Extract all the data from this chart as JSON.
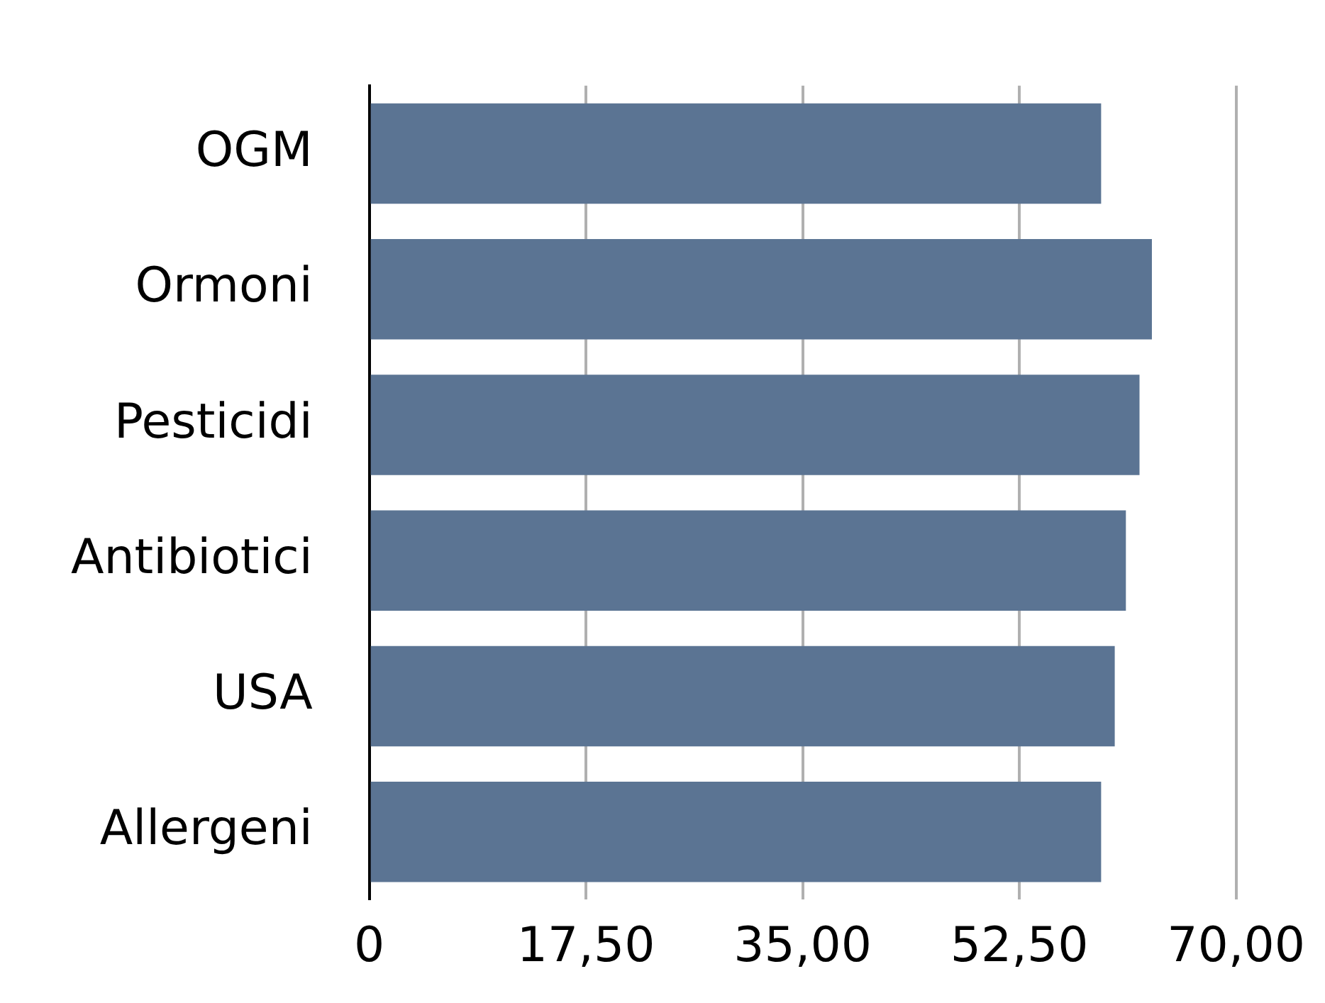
{
  "chart_data": {
    "type": "bar",
    "orientation": "horizontal",
    "categories": [
      "OGM",
      "Ormoni",
      "Pesticidi",
      "Antibiotici",
      "USA",
      "Allergeni"
    ],
    "values": [
      59.1,
      63.2,
      62.2,
      61.1,
      60.2,
      59.1
    ],
    "color": "#5b7493",
    "xlim": [
      0,
      70
    ],
    "xticks": [
      0,
      {
        "value": 17.5,
        "label": "17,50"
      },
      {
        "value": 35,
        "label": "35,00"
      },
      {
        "value": 52.5,
        "label": "52,50"
      },
      {
        "value": 70,
        "label": "70,00"
      }
    ],
    "grid": "x",
    "legend": false
  }
}
